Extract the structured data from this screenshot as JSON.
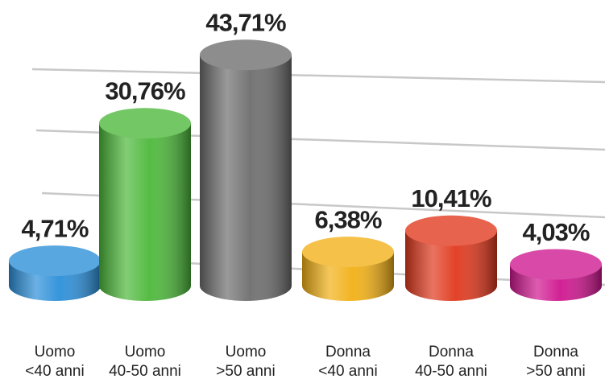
{
  "chart_data": {
    "type": "bar",
    "categories": [
      [
        "Uomo",
        "<40 anni"
      ],
      [
        "Uomo",
        "40-50 anni"
      ],
      [
        "Uomo",
        ">50 anni"
      ],
      [
        "Donna",
        "<40 anni"
      ],
      [
        "Donna",
        "40-50 anni"
      ],
      [
        "Donna",
        ">50 anni"
      ]
    ],
    "values": [
      4.71,
      30.76,
      43.71,
      6.38,
      10.41,
      4.03
    ],
    "value_labels": [
      "4,71%",
      "30,76%",
      "43,71%",
      "6,38%",
      "10,41%",
      "4,03%"
    ],
    "colors": [
      "#2b8fd9",
      "#4cb83a",
      "#6e6e6e",
      "#f2b015",
      "#e0381d",
      "#cf168f"
    ],
    "ylim": [
      0,
      50
    ]
  }
}
